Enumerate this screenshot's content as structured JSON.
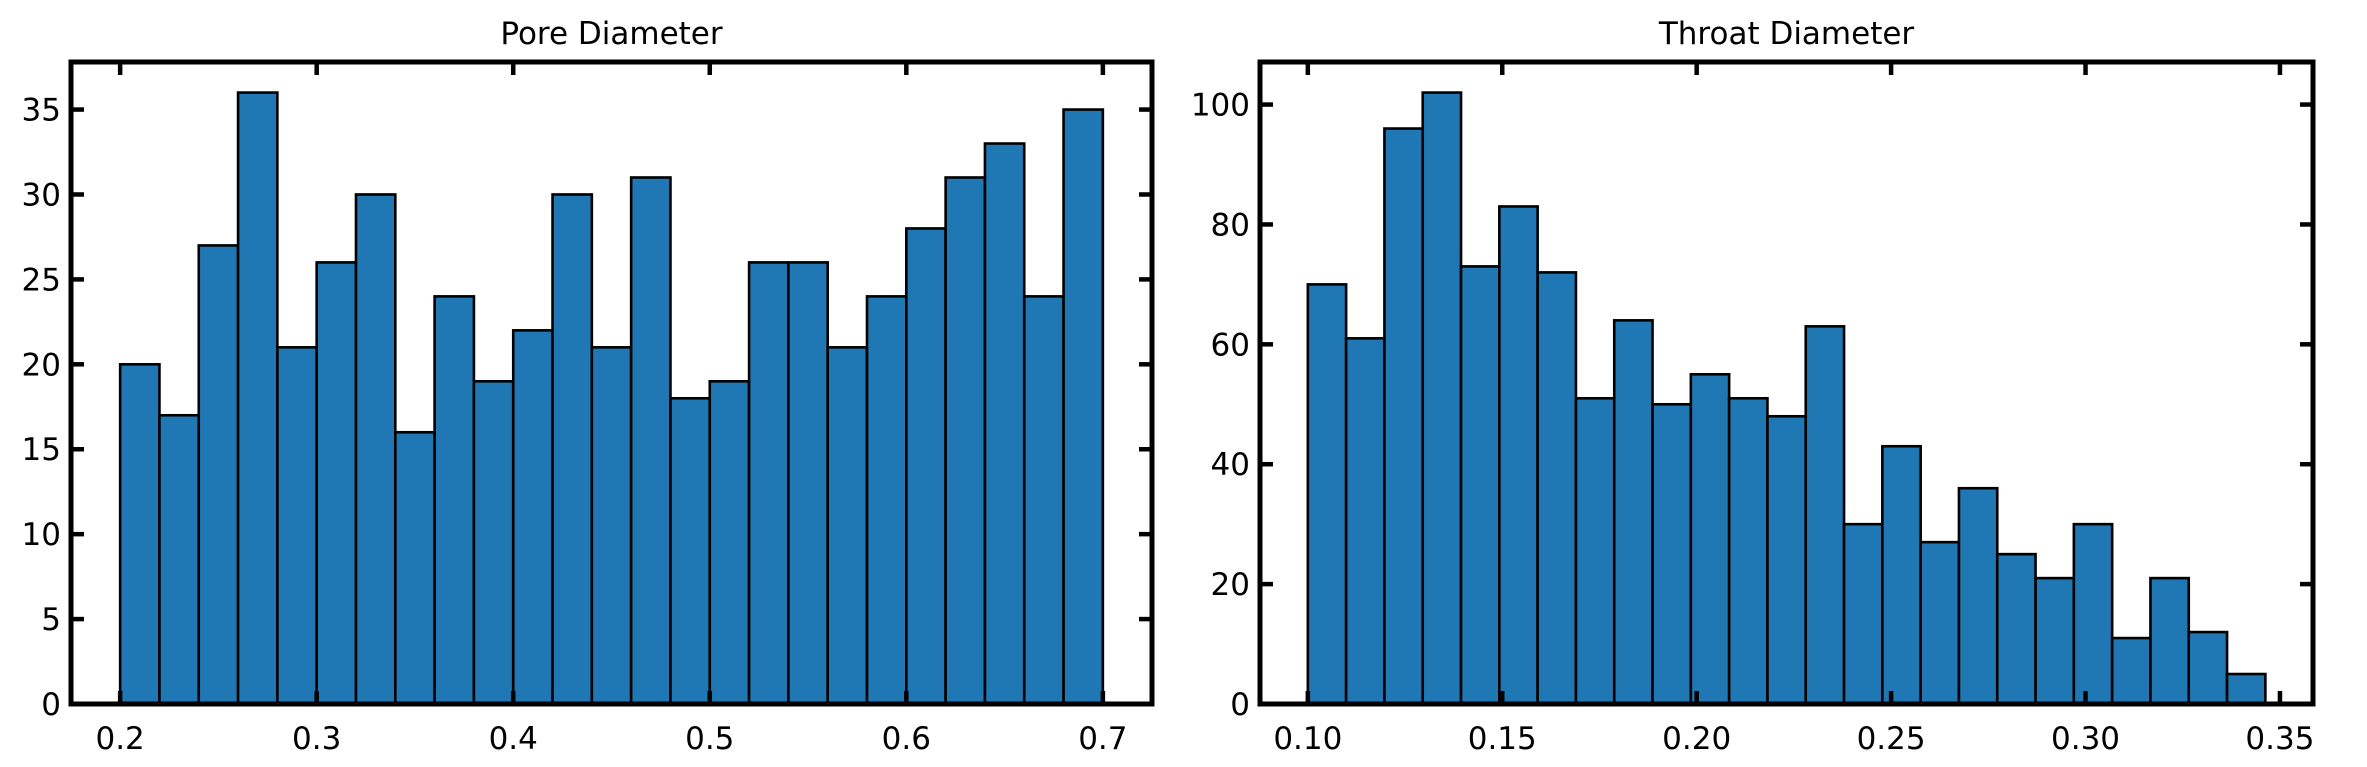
{
  "chart_data": [
    {
      "type": "bar",
      "title": "Pore Diameter",
      "xlabel": "",
      "ylabel": "",
      "bin_start": 0.2,
      "bin_width": 0.02,
      "values": [
        20,
        17,
        27,
        36,
        21,
        26,
        30,
        16,
        24,
        19,
        22,
        30,
        21,
        31,
        18,
        19,
        26,
        26,
        21,
        24,
        28,
        31,
        33,
        24,
        35
      ],
      "xlim": [
        0.175,
        0.725
      ],
      "ylim": [
        0,
        37.8
      ],
      "xticks": [
        0.2,
        0.3,
        0.4,
        0.5,
        0.6,
        0.7
      ],
      "xtick_labels": [
        "0.2",
        "0.3",
        "0.4",
        "0.5",
        "0.6",
        "0.7"
      ],
      "yticks": [
        0,
        5,
        10,
        15,
        20,
        25,
        30,
        35
      ],
      "ytick_labels": [
        "0",
        "5",
        "10",
        "15",
        "20",
        "25",
        "30",
        "35"
      ],
      "color": "#1f77b4",
      "grid": false
    },
    {
      "type": "bar",
      "title": "Throat Diameter",
      "xlabel": "",
      "ylabel": "",
      "bin_start": 0.1,
      "bin_width": 0.00985,
      "values": [
        70,
        61,
        96,
        102,
        73,
        83,
        72,
        51,
        64,
        50,
        55,
        51,
        48,
        63,
        30,
        43,
        27,
        36,
        25,
        21,
        30,
        11,
        21,
        12,
        5
      ],
      "xlim": [
        0.0877,
        0.3585
      ],
      "ylim": [
        0,
        107.1
      ],
      "xticks": [
        0.1,
        0.15,
        0.2,
        0.25,
        0.3,
        0.35
      ],
      "xtick_labels": [
        "0.10",
        "0.15",
        "0.20",
        "0.25",
        "0.30",
        "0.35"
      ],
      "yticks": [
        0,
        20,
        40,
        60,
        80,
        100
      ],
      "ytick_labels": [
        "0",
        "20",
        "40",
        "60",
        "80",
        "100"
      ],
      "color": "#1f77b4",
      "grid": false
    }
  ]
}
